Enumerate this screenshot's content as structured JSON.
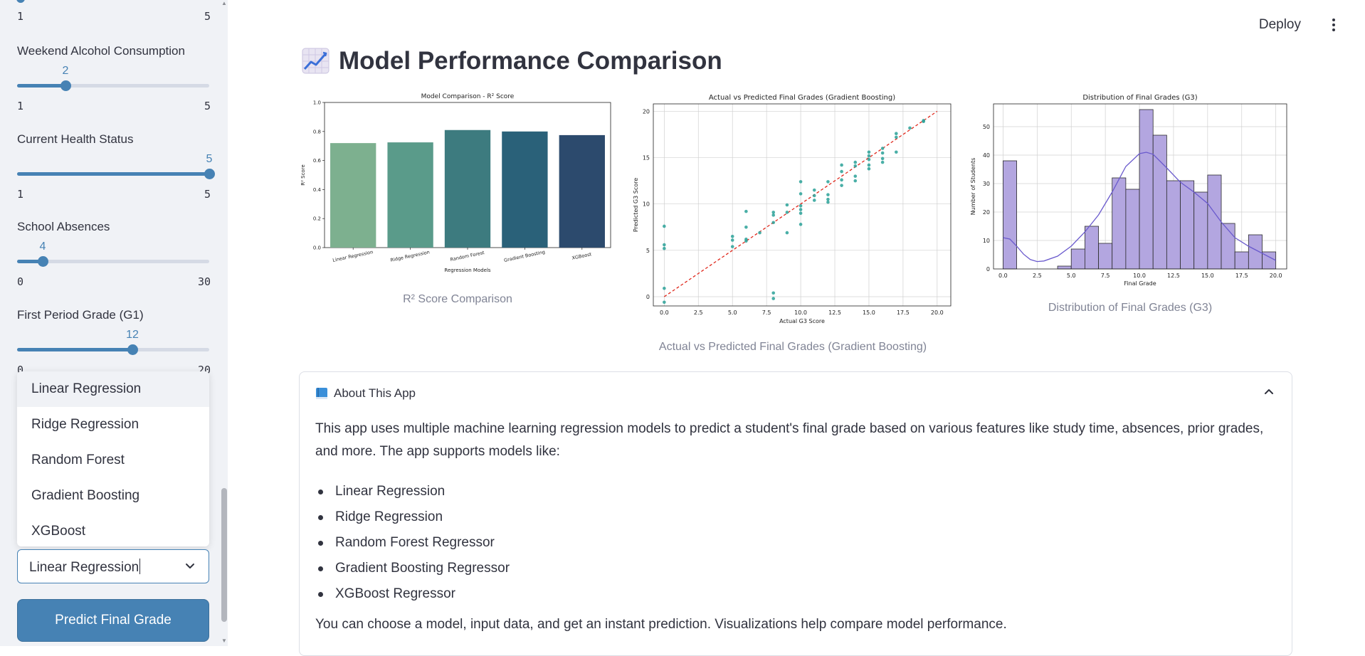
{
  "sidebar": {
    "sliders": [
      {
        "label": "",
        "value": null,
        "min": "1",
        "max": "5",
        "fraction": 0.0
      },
      {
        "label": "Weekend Alcohol Consumption",
        "value": "2",
        "min": "1",
        "max": "5",
        "fraction": 0.25
      },
      {
        "label": "Current Health Status",
        "value": "5",
        "min": "1",
        "max": "5",
        "fraction": 1.0
      },
      {
        "label": "School Absences",
        "value": "4",
        "min": "0",
        "max": "30",
        "fraction": 0.1333
      },
      {
        "label": "First Period Grade (G1)",
        "value": "12",
        "min": "0",
        "max": "20",
        "fraction": 0.6
      }
    ],
    "model_options": [
      "Linear Regression",
      "Ridge Regression",
      "Random Forest",
      "Gradient Boosting",
      "XGBoost"
    ],
    "selected_model": "Linear Regression",
    "predict_label": "Predict Final Grade"
  },
  "header": {
    "deploy_label": "Deploy",
    "menu_icon": "kebab-menu-icon"
  },
  "section": {
    "icon": "chart-increasing-icon",
    "title": "Model Performance Comparison"
  },
  "captions": {
    "r2": "R² Score Comparison",
    "scatter": "Actual vs Predicted Final Grades (Gradient Boosting)",
    "hist": "Distribution of Final Grades (G3)"
  },
  "chart_data": [
    {
      "type": "bar",
      "title": "Model Comparison - R² Score",
      "xlabel": "Regression Models",
      "ylabel": "R² Score",
      "categories": [
        "Linear Regression",
        "Ridge Regression",
        "Random Forest",
        "Gradient Boosting",
        "XGBoost"
      ],
      "values": [
        0.72,
        0.725,
        0.81,
        0.8,
        0.775
      ],
      "colors": [
        "#7db08f",
        "#5a9b8a",
        "#3d7b7f",
        "#2a6179",
        "#2c4a6d"
      ],
      "ylim": [
        0,
        1.0
      ],
      "yticks": [
        "0.0",
        "0.2",
        "0.4",
        "0.6",
        "0.8",
        "1.0"
      ],
      "grid": false
    },
    {
      "type": "scatter",
      "title": "Actual vs Predicted Final Grades (Gradient Boosting)",
      "xlabel": "Actual G3 Score",
      "ylabel": "Predicted G3 Score",
      "xlim": [
        -0.8,
        21
      ],
      "ylim": [
        -1,
        20.8
      ],
      "xticks": [
        "0.0",
        "2.5",
        "5.0",
        "7.5",
        "10.0",
        "12.5",
        "15.0",
        "17.5",
        "20.0"
      ],
      "yticks": [
        "0",
        "5",
        "10",
        "15",
        "20"
      ],
      "grid": true,
      "reference_line": {
        "from": [
          0,
          0
        ],
        "to": [
          20,
          20
        ],
        "color": "#e0271b",
        "style": "dashed"
      },
      "point_color": "#2aa198",
      "points": [
        [
          0,
          7.6
        ],
        [
          0,
          5.6
        ],
        [
          0,
          5.2
        ],
        [
          0,
          0.9
        ],
        [
          0,
          -0.6
        ],
        [
          5,
          6.5
        ],
        [
          5,
          6.1
        ],
        [
          5,
          5.4
        ],
        [
          6,
          9.2
        ],
        [
          6,
          7.5
        ],
        [
          6,
          6.2
        ],
        [
          6,
          6.0
        ],
        [
          7,
          6.9
        ],
        [
          8,
          9.1
        ],
        [
          8,
          8.8
        ],
        [
          8,
          8.0
        ],
        [
          8,
          0.4
        ],
        [
          8,
          -0.2
        ],
        [
          9,
          9.9
        ],
        [
          9,
          9.1
        ],
        [
          9,
          6.9
        ],
        [
          10,
          12.4
        ],
        [
          10,
          11.1
        ],
        [
          10,
          9.8
        ],
        [
          10,
          9.4
        ],
        [
          10,
          9.0
        ],
        [
          10,
          7.8
        ],
        [
          11,
          11.5
        ],
        [
          11,
          10.9
        ],
        [
          11,
          10.4
        ],
        [
          12,
          12.4
        ],
        [
          12,
          11.0
        ],
        [
          12,
          10.5
        ],
        [
          12,
          10.2
        ],
        [
          13,
          14.2
        ],
        [
          13,
          13.5
        ],
        [
          13,
          12.6
        ],
        [
          13,
          12.0
        ],
        [
          14,
          14.5
        ],
        [
          14,
          14.1
        ],
        [
          14,
          13.0
        ],
        [
          14,
          12.5
        ],
        [
          15,
          15.6
        ],
        [
          15,
          15.2
        ],
        [
          15,
          14.8
        ],
        [
          15,
          14.2
        ],
        [
          15,
          13.8
        ],
        [
          16,
          16.0
        ],
        [
          16,
          15.5
        ],
        [
          16,
          14.9
        ],
        [
          16,
          14.5
        ],
        [
          17,
          17.6
        ],
        [
          17,
          17.2
        ],
        [
          17,
          15.6
        ],
        [
          18,
          18.2
        ],
        [
          19,
          18.9
        ],
        [
          19,
          19.0
        ]
      ]
    },
    {
      "type": "bar",
      "subtype": "histogram",
      "title": "Distribution of Final Grades (G3)",
      "xlabel": "Final Grade",
      "ylabel": "Number of Students",
      "xlim": [
        -0.7,
        20.8
      ],
      "ylim": [
        0,
        58
      ],
      "xticks": [
        "0.0",
        "2.5",
        "5.0",
        "7.5",
        "10.0",
        "12.5",
        "15.0",
        "17.5",
        "20.0"
      ],
      "yticks": [
        "0",
        "10",
        "20",
        "30",
        "40",
        "50"
      ],
      "grid": true,
      "bin_width": 1.0,
      "bins": [
        {
          "x0": 0,
          "count": 38
        },
        {
          "x0": 1,
          "count": 0
        },
        {
          "x0": 2,
          "count": 0
        },
        {
          "x0": 3,
          "count": 0
        },
        {
          "x0": 4,
          "count": 1
        },
        {
          "x0": 5,
          "count": 7
        },
        {
          "x0": 6,
          "count": 15
        },
        {
          "x0": 7,
          "count": 9
        },
        {
          "x0": 8,
          "count": 32
        },
        {
          "x0": 9,
          "count": 28
        },
        {
          "x0": 10,
          "count": 56
        },
        {
          "x0": 11,
          "count": 47
        },
        {
          "x0": 12,
          "count": 31
        },
        {
          "x0": 13,
          "count": 31
        },
        {
          "x0": 14,
          "count": 27
        },
        {
          "x0": 15,
          "count": 33
        },
        {
          "x0": 16,
          "count": 16
        },
        {
          "x0": 17,
          "count": 6
        },
        {
          "x0": 18,
          "count": 12
        },
        {
          "x0": 19,
          "count": 6
        }
      ],
      "bar_color": "#b3a6e0",
      "kde_color": "#6a5acd",
      "kde": [
        [
          0,
          11
        ],
        [
          0.5,
          10.5
        ],
        [
          1,
          8
        ],
        [
          1.5,
          5.2
        ],
        [
          2,
          3.3
        ],
        [
          2.5,
          2.6
        ],
        [
          3,
          2.8
        ],
        [
          4,
          4.5
        ],
        [
          5,
          8
        ],
        [
          6,
          13
        ],
        [
          7,
          19
        ],
        [
          8,
          27
        ],
        [
          9,
          36
        ],
        [
          10,
          40.5
        ],
        [
          10.5,
          41
        ],
        [
          11,
          40.3
        ],
        [
          12,
          35.5
        ],
        [
          13,
          30.5
        ],
        [
          14,
          27
        ],
        [
          15,
          23
        ],
        [
          16,
          16.5
        ],
        [
          17,
          11
        ],
        [
          18,
          8
        ],
        [
          19,
          5.5
        ],
        [
          20,
          3
        ]
      ]
    }
  ],
  "about": {
    "icon": "blue-book-icon",
    "title": "About This App",
    "intro": "This app uses multiple machine learning regression models to predict a student's final grade based on various features like study time, absences, prior grades, and more. The app supports models like:",
    "items": [
      "Linear Regression",
      "Ridge Regression",
      "Random Forest Regressor",
      "Gradient Boosting Regressor",
      "XGBoost Regressor"
    ],
    "outro": "You can choose a model, input data, and get an instant prediction. Visualizations help compare model performance."
  }
}
